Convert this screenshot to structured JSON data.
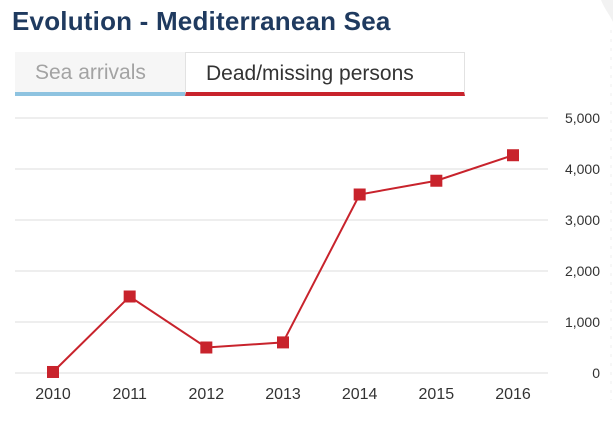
{
  "header": {
    "title": "Evolution - Mediterranean Sea"
  },
  "tabs": [
    {
      "label": "Sea arrivals",
      "active": false,
      "accent": "#8ec3e0"
    },
    {
      "label": "Dead/missing persons",
      "active": true,
      "accent": "#c8232c"
    }
  ],
  "colors": {
    "title": "#1f3a5f",
    "series": "#c8232c",
    "grid": "#dcdcdc",
    "text": "#333333"
  },
  "chart_data": {
    "type": "line",
    "x": [
      "2010",
      "2011",
      "2012",
      "2013",
      "2014",
      "2015",
      "2016"
    ],
    "series": [
      {
        "values": [
          20,
          1500,
          500,
          600,
          3500,
          3770,
          4270
        ]
      }
    ],
    "yticks": [
      "0",
      "1,000",
      "2,000",
      "3,000",
      "4,000",
      "5,000"
    ],
    "ylim": [
      0,
      5000
    ],
    "grid": true,
    "y_axis_side": "right"
  }
}
